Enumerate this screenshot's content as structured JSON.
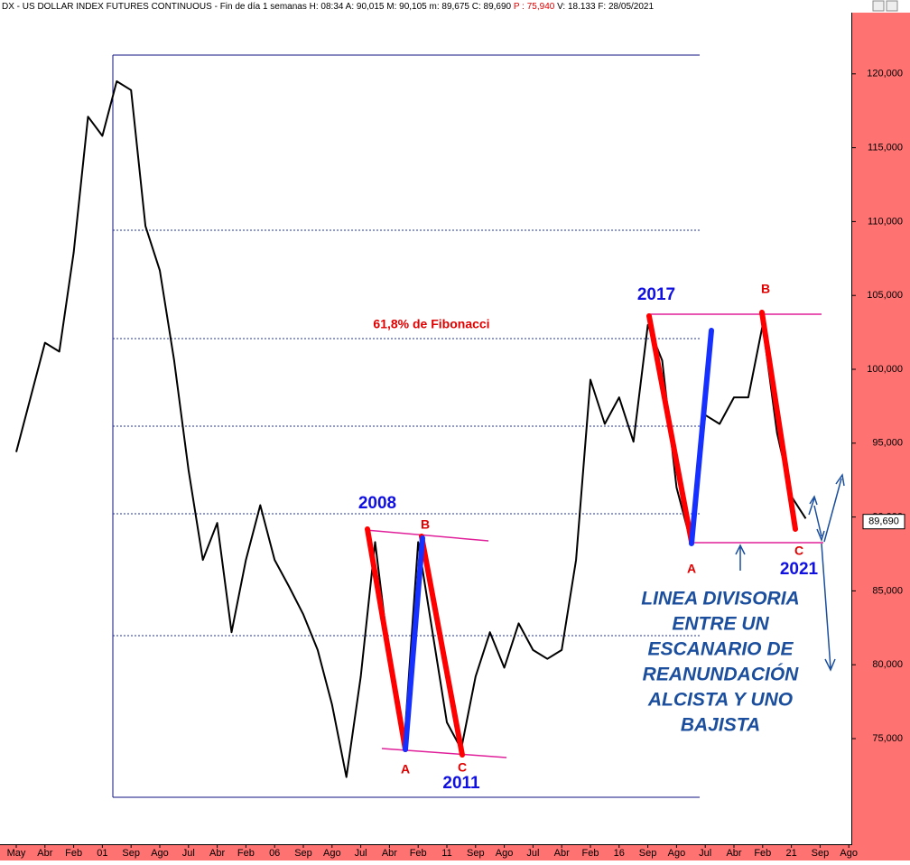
{
  "chart_data": {
    "type": "line",
    "header": [
      "DX - US DOLLAR INDEX FUTURES CONTINUOUS - Fin de día 1 semanas  H: 08:34  A: 90,015  M: 90,105  m: 89,675  C: 89,690 ",
      "P : 75,940",
      "  V: 18.133  F: 28/05/2021"
    ],
    "categories": [
      "May",
      null,
      "Abr",
      null,
      "Feb",
      null,
      "01",
      null,
      "Sep",
      null,
      "Ago",
      null,
      "Jul",
      null,
      "Abr",
      null,
      "Feb",
      null,
      "06",
      null,
      "Sep",
      null,
      "Ago",
      null,
      "Jul",
      null,
      "Abr",
      null,
      "Feb",
      null,
      "11",
      null,
      "Sep",
      null,
      "Ago",
      null,
      "Jul",
      null,
      "Abr",
      null,
      "Feb",
      null,
      "16",
      null,
      "Sep",
      null,
      "Ago",
      null,
      "Jul",
      null,
      "Abr",
      null,
      "Feb",
      null,
      "21",
      null,
      "Sep",
      null,
      "Ago"
    ],
    "series": [
      {
        "name": "DX",
        "color": "#000000",
        "values": [
          94.4,
          98.1,
          101.8,
          101.2,
          107.9,
          117.1,
          115.8,
          119.5,
          118.9,
          109.7,
          106.7,
          100.6,
          93.2,
          87.1,
          89.6,
          82.2,
          87.1,
          90.8,
          87.1,
          85.3,
          83.4,
          81.0,
          77.3,
          72.4,
          79.2,
          88.3,
          80.4,
          74.3,
          88.3,
          82.2,
          76.1,
          74.3,
          79.2,
          82.2,
          79.8,
          82.8,
          81.0,
          80.4,
          81.0,
          87.1,
          99.3,
          96.3,
          98.1,
          95.1,
          103.0,
          100.6,
          92.0,
          88.3,
          96.9,
          96.3,
          98.1,
          98.1,
          103.0,
          95.7,
          91.4,
          89.9,
          null,
          null,
          null
        ]
      }
    ],
    "last_value": {
      "value": 89.69,
      "label": "89,690"
    },
    "ylim": [
      67.85,
      125
    ],
    "yticks": [
      {
        "value": 75,
        "label": "75,000"
      },
      {
        "value": 80,
        "label": "80,000"
      },
      {
        "value": 85,
        "label": "85,000"
      },
      {
        "value": 90,
        "label": "90,000"
      },
      {
        "value": 95,
        "label": "95,000"
      },
      {
        "value": 100,
        "label": "100,000"
      },
      {
        "value": 105,
        "label": "105,000"
      },
      {
        "value": 110,
        "label": "110,000"
      },
      {
        "value": 115,
        "label": "115,000"
      },
      {
        "value": 120,
        "label": "120,000"
      }
    ],
    "annotations": [
      {
        "text": "2017",
        "color": "#1010e0"
      },
      {
        "text": "B",
        "color": "#e00000"
      },
      {
        "text": "61,8% de Fibonacci",
        "color": "#e00000"
      },
      {
        "text": "2008",
        "color": "#1010e0"
      },
      {
        "text": "B",
        "color": "#e00000"
      },
      {
        "text": "A",
        "color": "#e00000"
      },
      {
        "text": "C",
        "color": "#e00000"
      },
      {
        "text": "2011",
        "color": "#1010e0"
      },
      {
        "text": "A",
        "color": "#e00000"
      },
      {
        "text": "C",
        "color": "#e00000"
      },
      {
        "text": "2021",
        "color": "#1010e0"
      }
    ],
    "note_lines": [
      "LINEA DIVISORIA",
      "ENTRE UN",
      "ESCANARIO DE",
      "REANUNDACIÓN",
      "ALCISTA Y UNO",
      "BAJISTA"
    ]
  }
}
